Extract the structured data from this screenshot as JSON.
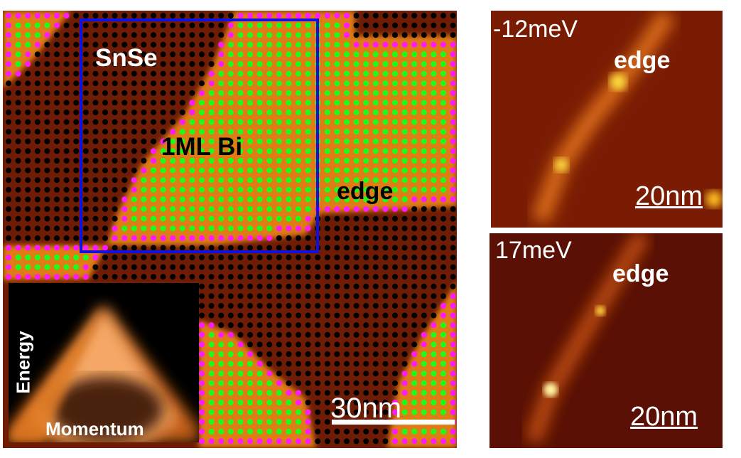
{
  "main_image": {
    "labels": {
      "substrate": "SnSe",
      "film": "1ML Bi",
      "edge": "edge"
    },
    "scale_bar": "30nm",
    "colors": {
      "bi_dot": "#19ff19",
      "edge_dot": "#ff19ff",
      "snse_dot": "#000000",
      "box": "#1010e0"
    }
  },
  "inset": {
    "y_label": "Energy",
    "x_label": "Momentum"
  },
  "panels": [
    {
      "energy": "-12meV",
      "label": "edge",
      "scale_bar": "20nm"
    },
    {
      "energy": "17meV",
      "label": "edge",
      "scale_bar": "20nm"
    }
  ]
}
